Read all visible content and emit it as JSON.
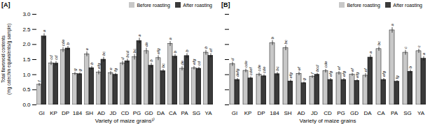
{
  "chart_data": [
    {
      "type": "bar",
      "title": "[A]",
      "xlabel": "Variety of maize grains¹⁾",
      "ylabel": "Total flavonoid contents\n(mg catechin equivalents/g sample)",
      "categories": [
        "GI",
        "KP",
        "DP",
        "184",
        "SH",
        "AD",
        "JD",
        "CD",
        "PG",
        "GD",
        "DA",
        "CA",
        "PA",
        "SG",
        "YA"
      ],
      "series": [
        {
          "name": "Before roasting",
          "color": "#c8c8c8",
          "values": [
            0.67,
            1.38,
            1.82,
            1.03,
            1.68,
            1.07,
            1.05,
            1.38,
            1.58,
            1.78,
            1.55,
            2.02,
            1.2,
            1.22,
            1.73
          ],
          "errors": [
            0.05,
            0.07,
            0.08,
            0.05,
            0.08,
            0.07,
            0.06,
            0.07,
            0.09,
            0.1,
            0.08,
            0.08,
            0.07,
            0.06,
            0.08
          ],
          "letters": [
            "f",
            "cd",
            "cde",
            "g",
            "e",
            "efg",
            "e",
            "d",
            "bc",
            "de",
            "efg",
            "a",
            "de",
            "efg",
            "b"
          ]
        },
        {
          "name": "After roasting",
          "color": "#3a3a3a",
          "values": [
            2.27,
            1.37,
            1.87,
            1.02,
            1.22,
            1.5,
            1.0,
            1.45,
            2.12,
            1.3,
            1.12,
            1.6,
            1.62,
            1.2,
            1.63
          ],
          "errors": [
            0.09,
            0.07,
            0.07,
            0.04,
            0.06,
            0.08,
            0.05,
            0.07,
            0.09,
            0.08,
            0.06,
            0.07,
            0.08,
            0.05,
            0.07
          ],
          "letters": [
            "a",
            "cd",
            "b",
            "g",
            "b",
            "bc",
            "fg",
            "bcd",
            "a",
            "b",
            "bc",
            "b",
            "b",
            "cd",
            "ef"
          ]
        }
      ],
      "ylim": [
        0.0,
        3.0
      ],
      "yticks": [
        {
          "value": 0,
          "label": "0.0"
        },
        0.5,
        {
          "value": 1,
          "label": "1.0"
        },
        1.5,
        {
          "value": 2,
          "label": "2.0"
        },
        2.5,
        {
          "value": 3,
          "label": "3.0"
        }
      ],
      "legend": "upper right"
    },
    {
      "type": "bar",
      "title": "[B]",
      "xlabel": "Variety of maize grains",
      "categories": [
        "GI",
        "KP",
        "DP",
        "184",
        "SH",
        "AD",
        "JD",
        "CD",
        "PG",
        "GD",
        "DA",
        "CA",
        "PA",
        "SG",
        "YA"
      ],
      "series": [
        {
          "name": "Before roasting",
          "color": "#c8c8c8",
          "values": [
            1.35,
            1.13,
            1.0,
            2.05,
            1.88,
            1.03,
            0.93,
            1.12,
            1.05,
            1.0,
            0.97,
            1.85,
            2.47,
            1.73,
            1.78
          ],
          "errors": [
            0.07,
            0.06,
            0.06,
            0.08,
            0.08,
            0.06,
            0.05,
            0.06,
            0.06,
            0.05,
            0.07,
            0.07,
            0.09,
            0.08,
            0.07
          ],
          "letters": [
            "d",
            "cde",
            "cde",
            "b",
            "bc",
            "ef",
            "f",
            "cde",
            "ef",
            "ef",
            "ef",
            "bc",
            "a",
            "c",
            "c"
          ]
        },
        {
          "name": "After roasting",
          "color": "#3a3a3a",
          "values": [
            0.83,
            0.88,
            0.95,
            1.02,
            0.78,
            0.72,
            1.0,
            0.83,
            0.83,
            0.8,
            1.57,
            0.83,
            0.77,
            1.1,
            1.53
          ],
          "errors": [
            0.05,
            0.05,
            0.05,
            0.06,
            0.05,
            0.04,
            0.05,
            0.05,
            0.05,
            0.04,
            0.08,
            0.05,
            0.04,
            0.06,
            0.07
          ],
          "letters": [
            "defg",
            "cdef",
            "cde",
            "bc",
            "efg",
            "g",
            "bcd",
            "efg",
            "efg",
            "efg",
            "a",
            "efg",
            "fg",
            "b",
            "a"
          ]
        }
      ],
      "ylim": [
        0.0,
        3.0
      ],
      "yticks": [
        {
          "value": 0,
          "label": "0.0"
        },
        0.5,
        {
          "value": 1,
          "label": "1.0"
        },
        1.5,
        {
          "value": 2,
          "label": "2.0"
        },
        2.5,
        {
          "value": 3,
          "label": "3.0"
        }
      ],
      "tick_labels": "x",
      "legend": "upper right"
    }
  ]
}
